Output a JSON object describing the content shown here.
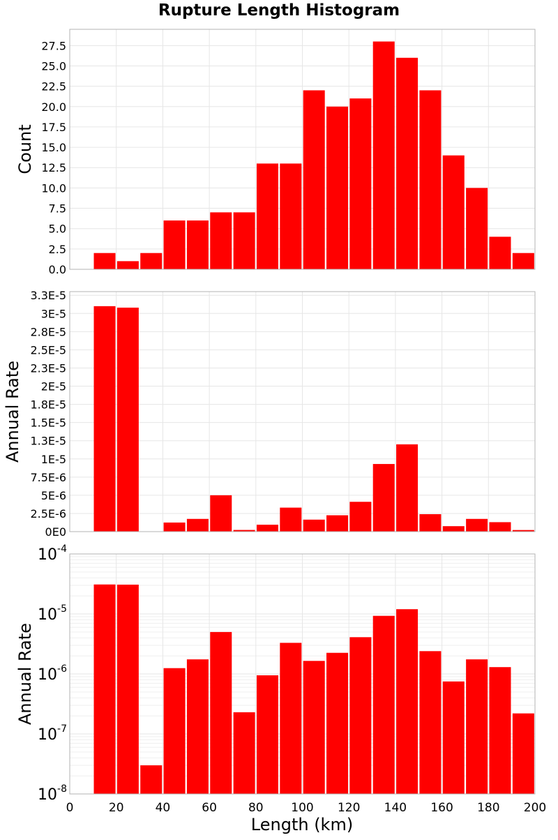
{
  "title": "Rupture Length Histogram",
  "xlabel": "Length (km)",
  "x_tick_labels": [
    "0",
    "20",
    "40",
    "60",
    "80",
    "100",
    "120",
    "140",
    "160",
    "180",
    "200"
  ],
  "colors": {
    "bar": "#ff0000",
    "bar_edge": "#ffffff"
  },
  "chart_data": [
    {
      "type": "bar",
      "ylabel": "Count",
      "xlim": [
        0,
        200
      ],
      "ylim": [
        0,
        29.5
      ],
      "grid": true,
      "y_tick_values": [
        0,
        2.5,
        5,
        7.5,
        10,
        12.5,
        15,
        17.5,
        20,
        22.5,
        25,
        27.5
      ],
      "y_tick_labels": [
        "0.0",
        "2.5",
        "5.0",
        "7.5",
        "10.0",
        "12.5",
        "15.0",
        "17.5",
        "20.0",
        "22.5",
        "25.0",
        "27.5"
      ],
      "x": [
        15,
        25,
        35,
        45,
        55,
        65,
        75,
        85,
        95,
        105,
        115,
        125,
        135,
        145,
        155,
        165,
        175,
        185,
        195
      ],
      "values": [
        2,
        1,
        2,
        6,
        6,
        7,
        7,
        13,
        13,
        22,
        20,
        21,
        28,
        26,
        22,
        14,
        10,
        4,
        2
      ]
    },
    {
      "type": "bar",
      "ylabel": "Annual Rate",
      "xlim": [
        0,
        200
      ],
      "ylim": [
        0,
        3.3e-05
      ],
      "grid": true,
      "y_tick_values": [
        0,
        2.5e-06,
        5e-06,
        7.5e-06,
        1e-05,
        1.25e-05,
        1.5e-05,
        1.75e-05,
        2e-05,
        2.25e-05,
        2.5e-05,
        2.75e-05,
        3e-05,
        3.25e-05
      ],
      "y_tick_labels": [
        "0E0",
        "2.5E-6",
        "5E-6",
        "7.5E-6",
        "1E-5",
        "1.3E-5",
        "1.5E-5",
        "1.8E-5",
        "2E-5",
        "2.3E-5",
        "2.5E-5",
        "2.8E-5",
        "3E-5",
        "3.3E-5"
      ],
      "x": [
        15,
        25,
        35,
        45,
        55,
        65,
        75,
        85,
        95,
        105,
        115,
        125,
        135,
        145,
        155,
        165,
        175,
        185,
        195
      ],
      "values": [
        3.1e-05,
        3.08e-05,
        3e-08,
        1.25e-06,
        1.75e-06,
        5e-06,
        2.3e-07,
        9.5e-07,
        3.3e-06,
        1.65e-06,
        2.25e-06,
        4.1e-06,
        9.3e-06,
        1.2e-05,
        2.4e-06,
        7.5e-07,
        1.75e-06,
        1.3e-06,
        2.2e-07
      ]
    },
    {
      "type": "bar",
      "ylabel": "Annual Rate",
      "xlim": [
        0,
        200
      ],
      "ylim": [
        1e-08,
        0.0001
      ],
      "yscale": "log",
      "grid": true,
      "y_tick_values": [
        1e-08,
        1e-07,
        1e-06,
        1e-05,
        0.0001
      ],
      "y_tick_bases": [
        "10",
        "10",
        "10",
        "10",
        "10"
      ],
      "y_tick_exponents": [
        "-8",
        "-7",
        "-6",
        "-5",
        "-4"
      ],
      "x": [
        15,
        25,
        35,
        45,
        55,
        65,
        75,
        85,
        95,
        105,
        115,
        125,
        135,
        145,
        155,
        165,
        175,
        185,
        195
      ],
      "values": [
        3.1e-05,
        3.08e-05,
        3e-08,
        1.25e-06,
        1.75e-06,
        5e-06,
        2.3e-07,
        9.5e-07,
        3.3e-06,
        1.65e-06,
        2.25e-06,
        4.1e-06,
        9.3e-06,
        1.2e-05,
        2.4e-06,
        7.5e-07,
        1.75e-06,
        1.3e-06,
        2.2e-07
      ]
    }
  ]
}
